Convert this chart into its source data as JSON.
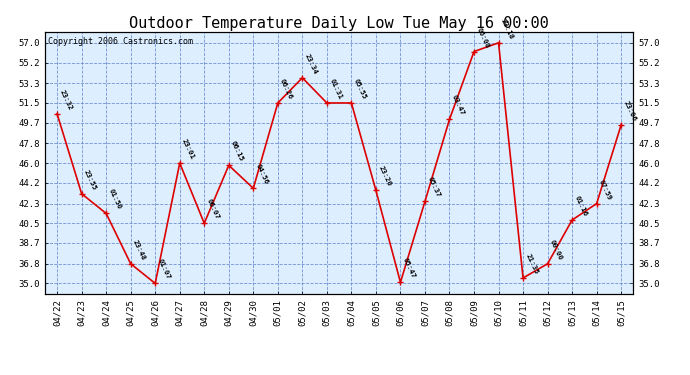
{
  "title": "Outdoor Temperature Daily Low Tue May 16 00:00",
  "copyright": "Copyright 2006 Castronics.com",
  "dates": [
    "04/22",
    "04/23",
    "04/24",
    "04/25",
    "04/26",
    "04/27",
    "04/28",
    "04/29",
    "04/30",
    "05/01",
    "05/02",
    "05/03",
    "05/04",
    "05/05",
    "05/06",
    "05/07",
    "05/08",
    "05/09",
    "05/10",
    "05/11",
    "05/12",
    "05/13",
    "05/14",
    "05/15"
  ],
  "values": [
    50.5,
    43.2,
    41.4,
    36.8,
    35.0,
    46.0,
    40.5,
    45.8,
    43.7,
    51.5,
    53.8,
    51.5,
    51.5,
    43.5,
    35.1,
    42.5,
    50.0,
    56.2,
    57.0,
    35.5,
    36.8,
    40.8,
    42.3,
    49.5
  ],
  "times": [
    "23:32",
    "23:55",
    "01:50",
    "23:48",
    "01:07",
    "23:01",
    "06:07",
    "06:15",
    "04:56",
    "06:26",
    "23:34",
    "01:31",
    "05:55",
    "23:20",
    "05:47",
    "05:37",
    "03:47",
    "06:08",
    "23:18",
    "21:35",
    "00:00",
    "01:16",
    "07:59",
    "23:06"
  ],
  "ylim": [
    34.0,
    58.0
  ],
  "yticks": [
    35.0,
    36.8,
    38.7,
    40.5,
    42.3,
    44.2,
    46.0,
    47.8,
    49.7,
    51.5,
    53.3,
    55.2,
    57.0
  ],
  "line_color": "#dd0000",
  "marker_color": "#dd0000",
  "grid_color": "#6688cc",
  "plot_bg_color": "#ddeeff",
  "title_fontsize": 11,
  "tick_fontsize": 6.5,
  "copyright_fontsize": 6,
  "label_rotation": -65
}
